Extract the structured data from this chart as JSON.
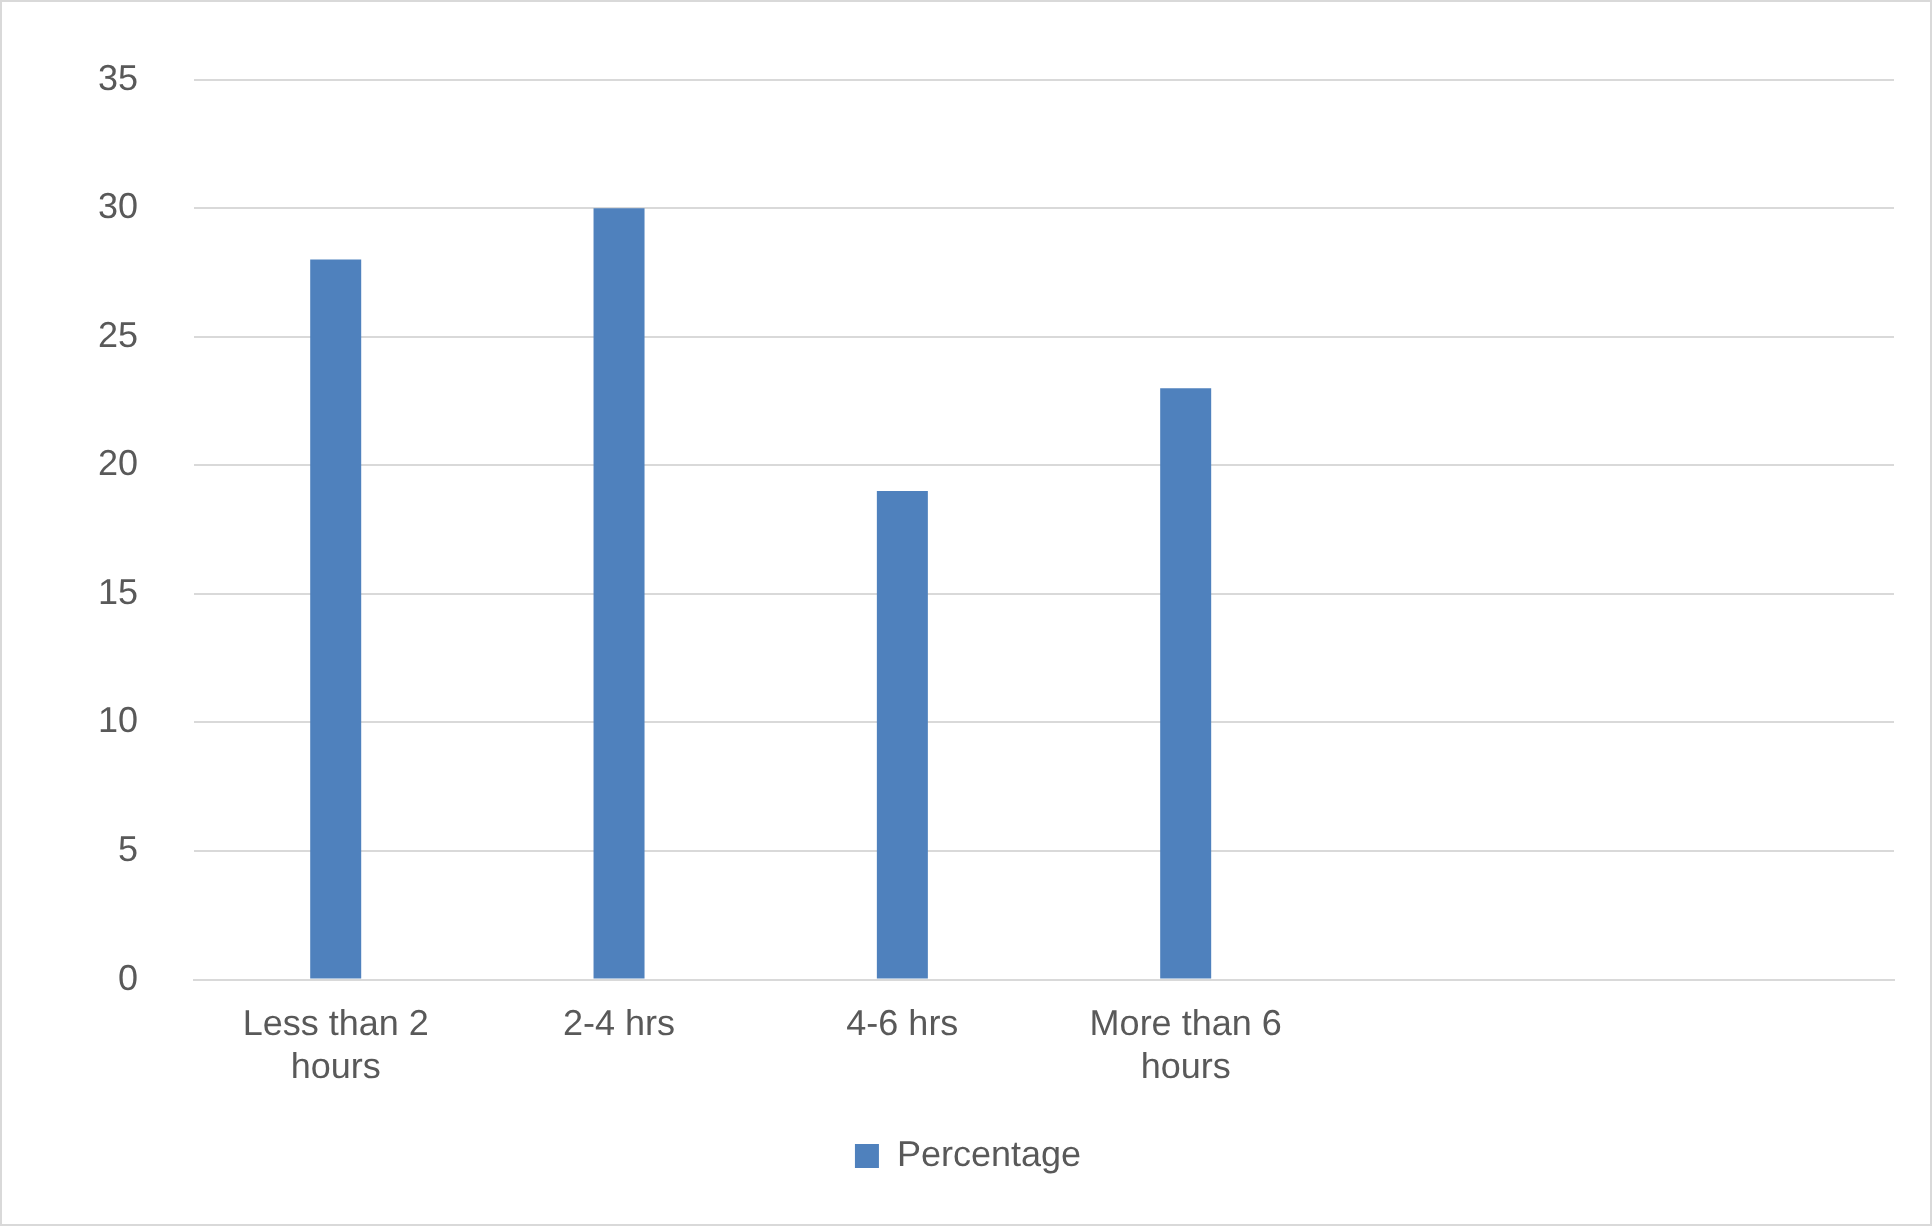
{
  "chart_data": {
    "type": "bar",
    "categories": [
      "Less than 2 hours",
      "2-4 hrs",
      "4-6 hrs",
      "More than 6 hours",
      null,
      null
    ],
    "series": [
      {
        "name": "Percentage",
        "color": "#4f81bd",
        "values": [
          28,
          30,
          19,
          23,
          null,
          null
        ]
      }
    ],
    "ylim": [
      0,
      35
    ],
    "yticks": [
      0,
      5,
      10,
      15,
      20,
      25,
      30,
      35
    ],
    "grid": "y",
    "legend": "bottom"
  }
}
